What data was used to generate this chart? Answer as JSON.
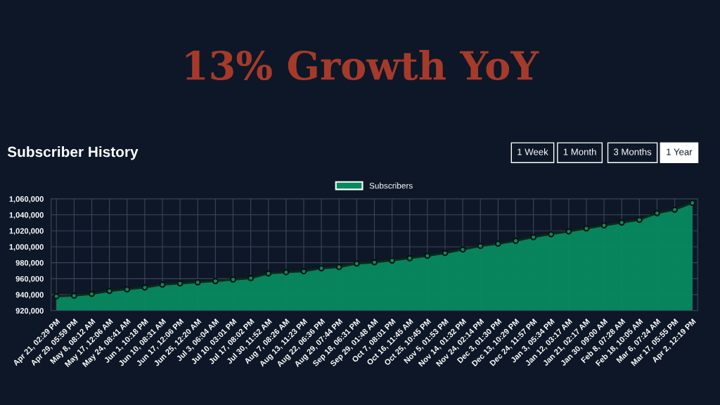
{
  "chart_data": {
    "type": "area",
    "title": "13% Growth YoY",
    "subtitle": "Subscriber History",
    "annotations": [
      "1 Week",
      "1 Month",
      "3 Months",
      "1 Year"
    ],
    "categories": [
      "Apr 21, 02:29 PM",
      "Apr 29, 05:59 PM",
      "May 8, 08:12 AM",
      "May 17, 12:06 AM",
      "May 24, 08:41 AM",
      "Jun 1, 10:18 PM",
      "Jun 10, 08:31 AM",
      "Jun 17, 12:06 PM",
      "Jun 25, 12:20 AM",
      "Jul 3, 06:04 AM",
      "Jul 10, 03:01 PM",
      "Jul 17, 08:02 PM",
      "Jul 30, 11:52 AM",
      "Aug 7, 08:26 AM",
      "Aug 13, 11:23 PM",
      "Aug 22, 06:36 PM",
      "Aug 29, 07:44 PM",
      "Sep 18, 06:31 PM",
      "Sep 29, 01:48 AM",
      "Oct 7, 08:01 PM",
      "Oct 16, 11:45 AM",
      "Oct 25, 10:45 PM",
      "Nov 5, 01:53 PM",
      "Nov 14, 01:32 PM",
      "Nov 24, 02:14 PM",
      "Dec 3, 01:30 PM",
      "Dec 13, 10:29 PM",
      "Dec 24, 11:57 PM",
      "Jan 3, 05:34 PM",
      "Jan 12, 03:17 AM",
      "Jan 21, 02:17 AM",
      "Jan 30, 09:00 AM",
      "Feb 8, 07:28 AM",
      "Feb 18, 10:05 AM",
      "Mar 6, 07:24 AM",
      "Mar 17, 05:55 PM",
      "Apr 2, 12:19 PM"
    ],
    "series": [
      {
        "name": "Subscribers",
        "color": "#078a5f",
        "values": [
          938000,
          938800,
          940900,
          944600,
          946700,
          949000,
          952600,
          954100,
          955500,
          957000,
          959000,
          960700,
          966600,
          968100,
          969300,
          973100,
          974600,
          979000,
          980500,
          982800,
          985700,
          988700,
          992200,
          996600,
          1001000,
          1003900,
          1007400,
          1012100,
          1015700,
          1019200,
          1023000,
          1026800,
          1030300,
          1033800,
          1042100,
          1046500,
          1055000
        ]
      }
    ],
    "ylim": [
      920000,
      1060000
    ],
    "yticks": [
      {
        "value": 920000,
        "label": "920,000"
      },
      {
        "value": 940000,
        "label": "940,000"
      },
      {
        "value": 960000,
        "label": "960,000"
      },
      {
        "value": 980000,
        "label": "980,000"
      },
      {
        "value": 1000000,
        "label": "1,000,000"
      },
      {
        "value": 1020000,
        "label": "1,020,000"
      },
      {
        "value": 1040000,
        "label": "1,040,000"
      },
      {
        "value": 1060000,
        "label": "1,060,000"
      }
    ],
    "grid": true,
    "legend": "top",
    "marker": "circle"
  }
}
